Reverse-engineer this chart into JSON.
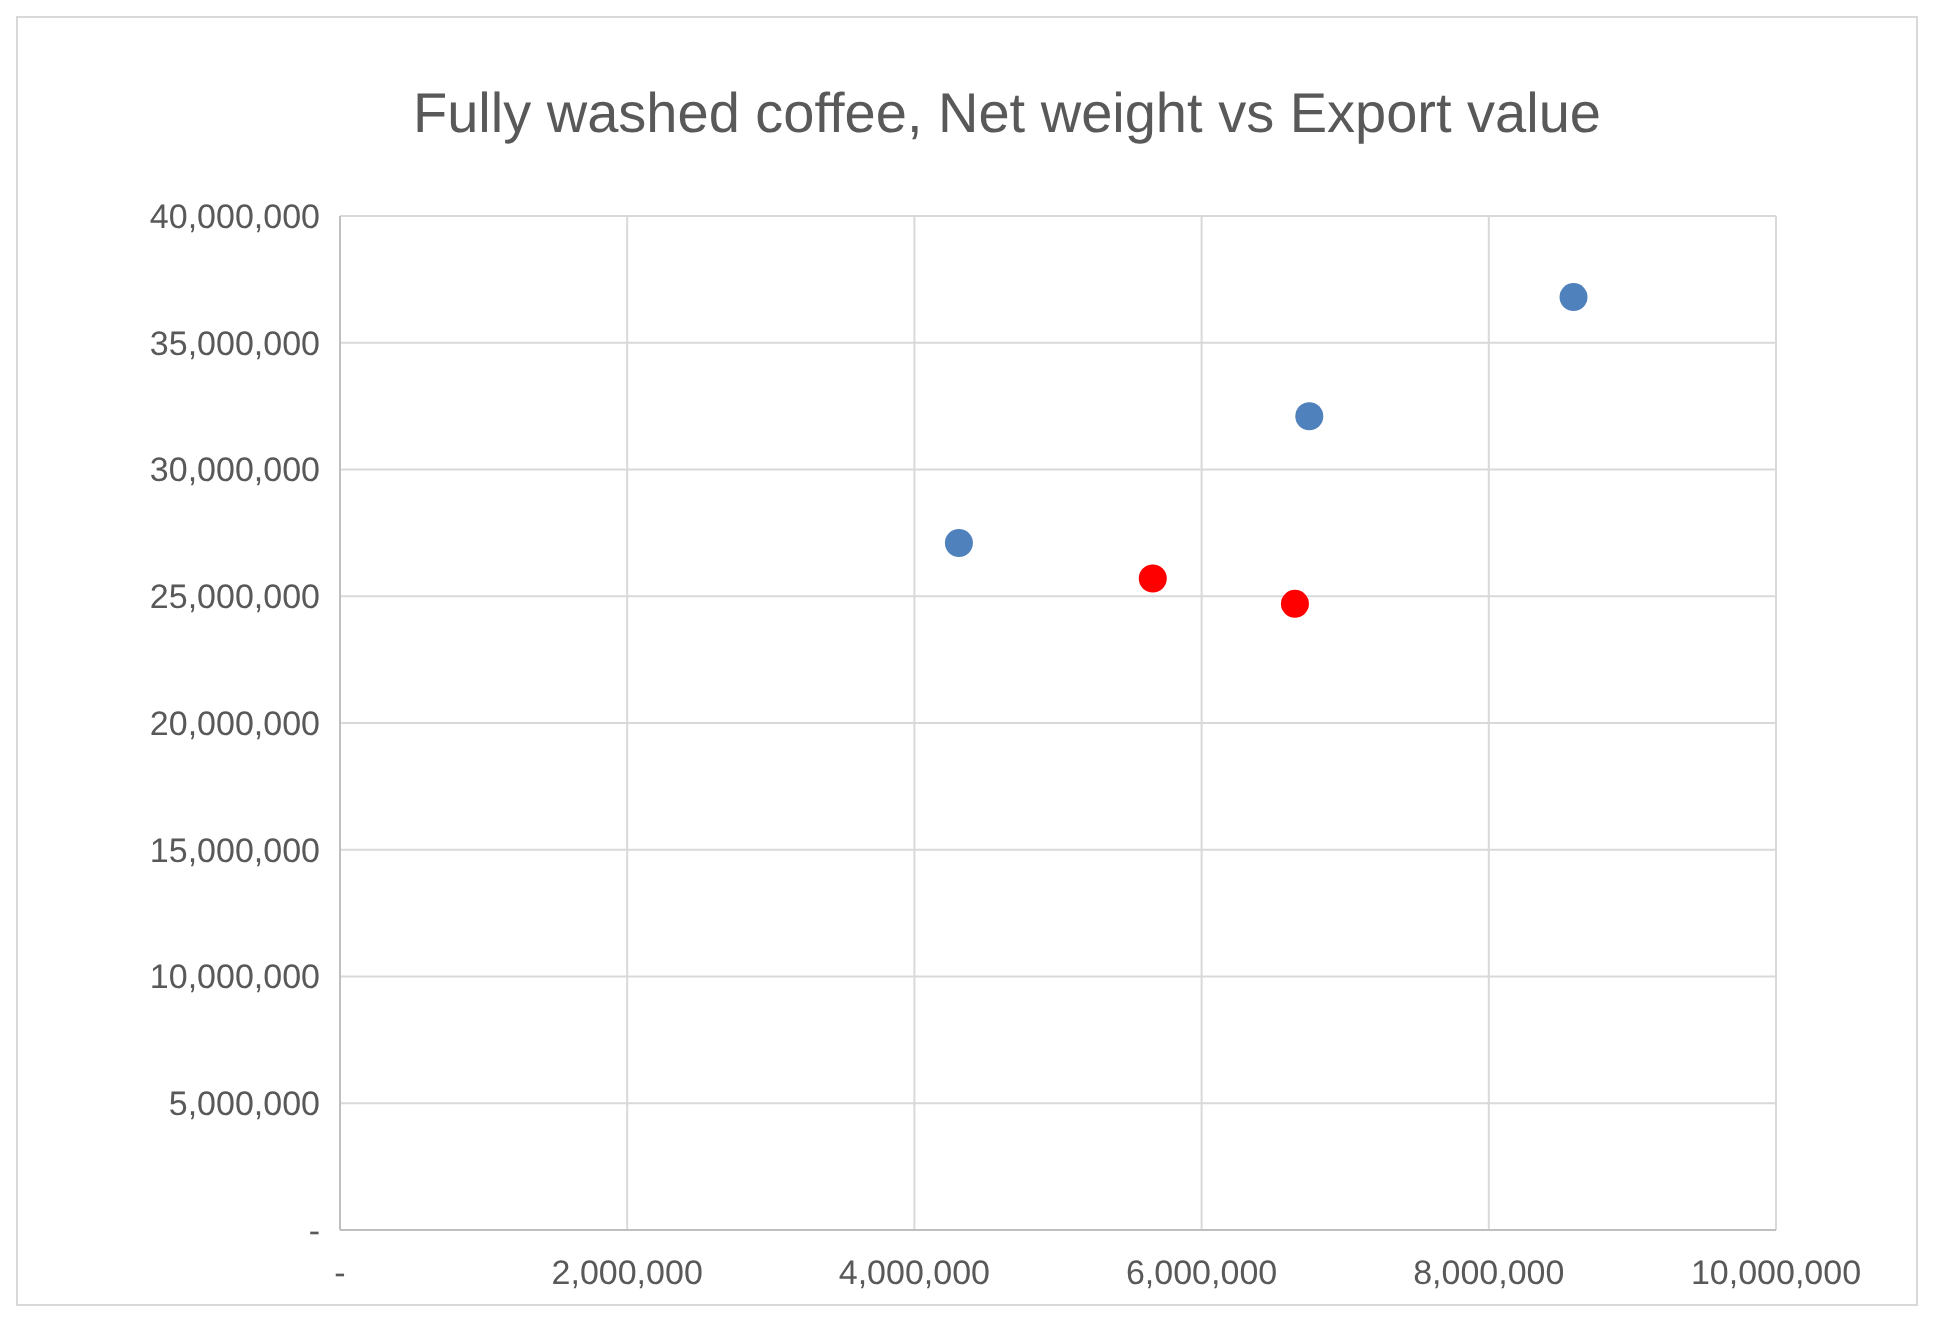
{
  "chart_data": {
    "type": "scatter",
    "title": "Fully washed coffee, Net weight vs Export value",
    "x": [
      4310000,
      6750000,
      8590000,
      5660000,
      6650000
    ],
    "values": [
      27100000,
      32100000,
      36800000,
      25700000,
      24700000
    ],
    "colors": [
      "#4f81bd",
      "#4f81bd",
      "#4f81bd",
      "#ff0000",
      "#ff0000"
    ],
    "xlim": [
      0,
      10000000
    ],
    "ylim": [
      0,
      40000000
    ],
    "xticks": [
      {
        "value": 0,
        "label": "-"
      },
      {
        "value": 2000000,
        "label": "2,000,000"
      },
      {
        "value": 4000000,
        "label": "4,000,000"
      },
      {
        "value": 6000000,
        "label": "6,000,000"
      },
      {
        "value": 8000000,
        "label": "8,000,000"
      },
      {
        "value": 10000000,
        "label": "10,000,000"
      }
    ],
    "yticks": [
      {
        "value": 0,
        "label": "-"
      },
      {
        "value": 5000000,
        "label": "5,000,000"
      },
      {
        "value": 10000000,
        "label": "10,000,000"
      },
      {
        "value": 15000000,
        "label": "15,000,000"
      },
      {
        "value": 20000000,
        "label": "20,000,000"
      },
      {
        "value": 25000000,
        "label": "25,000,000"
      },
      {
        "value": 30000000,
        "label": "30,000,000"
      },
      {
        "value": 35000000,
        "label": "35,000,000"
      },
      {
        "value": 40000000,
        "label": "40,000,000"
      }
    ],
    "grid": true,
    "marker": "circle"
  }
}
